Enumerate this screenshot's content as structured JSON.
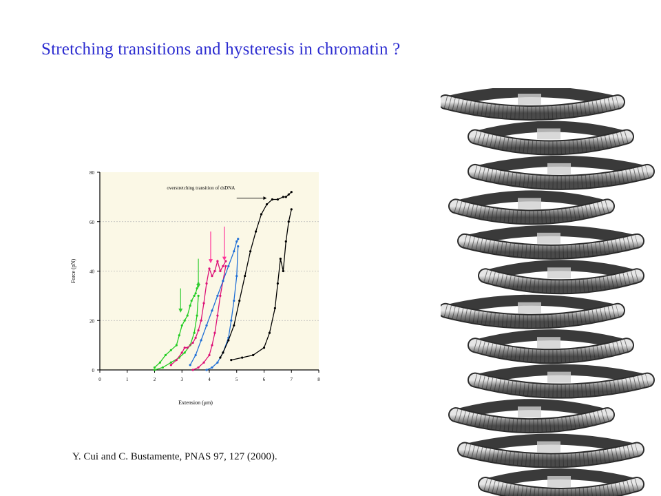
{
  "slide": {
    "title": "Stretching transitions and hysteresis in chromatin ?",
    "citation": "Y. Cui and C. Bustamente, PNAS 97, 127 (2000)."
  },
  "colors": {
    "title": "#2b2bd0",
    "plot_background": "#fbf8e6",
    "series_green": "#22cc22",
    "series_magenta": "#dd1177",
    "series_blue": "#1f6fd6",
    "series_black": "#000000",
    "arrow_pink": "#ff3399",
    "arrow_green": "#33cc33",
    "fiber": "#555555"
  },
  "chart_data": {
    "type": "line",
    "title": "",
    "xlabel": "Extension (μm)",
    "ylabel": "Force (pN)",
    "xlim": [
      0,
      8
    ],
    "ylim": [
      0,
      80
    ],
    "xticks": [
      "0",
      "1",
      "2",
      "3",
      "4",
      "5",
      "6",
      "7",
      "8"
    ],
    "yticks": [
      "0",
      "20",
      "40",
      "60",
      "80"
    ],
    "grid": "horizontal dashed",
    "annotation": "overstretching transition of dsDNA",
    "markers_down_at_x": [
      2.95,
      3.6,
      4.05,
      4.55
    ],
    "series": [
      {
        "x": [
          2.0,
          2.2,
          2.4,
          2.6,
          2.8,
          2.9,
          3.0,
          3.1,
          3.2,
          3.3,
          3.35,
          3.45,
          3.5,
          3.55,
          3.6
        ],
        "y": [
          1,
          3,
          6,
          8,
          10,
          14,
          18,
          20,
          22,
          26,
          28,
          30,
          31,
          33,
          35
        ]
      },
      {
        "x": [
          2.0,
          2.3,
          2.6,
          2.9,
          3.1,
          3.3,
          3.45,
          3.55,
          3.6
        ],
        "y": [
          0,
          1,
          3,
          5,
          7,
          10,
          15,
          22,
          30
        ]
      },
      {
        "x": [
          2.6,
          2.8,
          3.0,
          3.1,
          3.2,
          3.4,
          3.5,
          3.6,
          3.7,
          3.8,
          3.9,
          4.0,
          4.1,
          4.2,
          4.3,
          4.4,
          4.5,
          4.6
        ],
        "y": [
          2,
          4,
          7,
          9,
          9,
          11,
          13,
          16,
          20,
          27,
          35,
          41,
          38,
          40,
          44,
          40,
          42,
          44
        ]
      },
      {
        "x": [
          3.4,
          3.6,
          3.8,
          4.0,
          4.1,
          4.2,
          4.3,
          4.4,
          4.5,
          4.6
        ],
        "y": [
          0,
          1,
          3,
          6,
          10,
          15,
          22,
          30,
          36,
          42
        ]
      },
      {
        "x": [
          3.3,
          3.5,
          3.7,
          3.9,
          4.1,
          4.3,
          4.5,
          4.7,
          4.9,
          5.0,
          5.05
        ],
        "y": [
          2,
          6,
          12,
          18,
          24,
          30,
          36,
          42,
          48,
          52,
          53
        ]
      },
      {
        "x": [
          3.9,
          4.1,
          4.3,
          4.5,
          4.7,
          4.8,
          4.9,
          5.0,
          5.05
        ],
        "y": [
          0,
          1,
          3,
          7,
          13,
          20,
          28,
          38,
          50
        ]
      },
      {
        "x": [
          4.4,
          4.5,
          4.7,
          4.9,
          5.1,
          5.3,
          5.5,
          5.7,
          5.9,
          6.1,
          6.3,
          6.5,
          6.7,
          6.8,
          6.9,
          7.0
        ],
        "y": [
          5,
          7,
          12,
          18,
          28,
          38,
          48,
          56,
          63,
          67,
          69,
          69,
          70,
          70,
          71,
          72
        ]
      },
      {
        "x": [
          4.8,
          5.2,
          5.6,
          6.0,
          6.2,
          6.4,
          6.5,
          6.6,
          6.7,
          6.8,
          6.9,
          7.0
        ],
        "y": [
          4,
          5,
          6,
          9,
          15,
          25,
          35,
          45,
          40,
          52,
          60,
          65
        ]
      }
    ]
  }
}
